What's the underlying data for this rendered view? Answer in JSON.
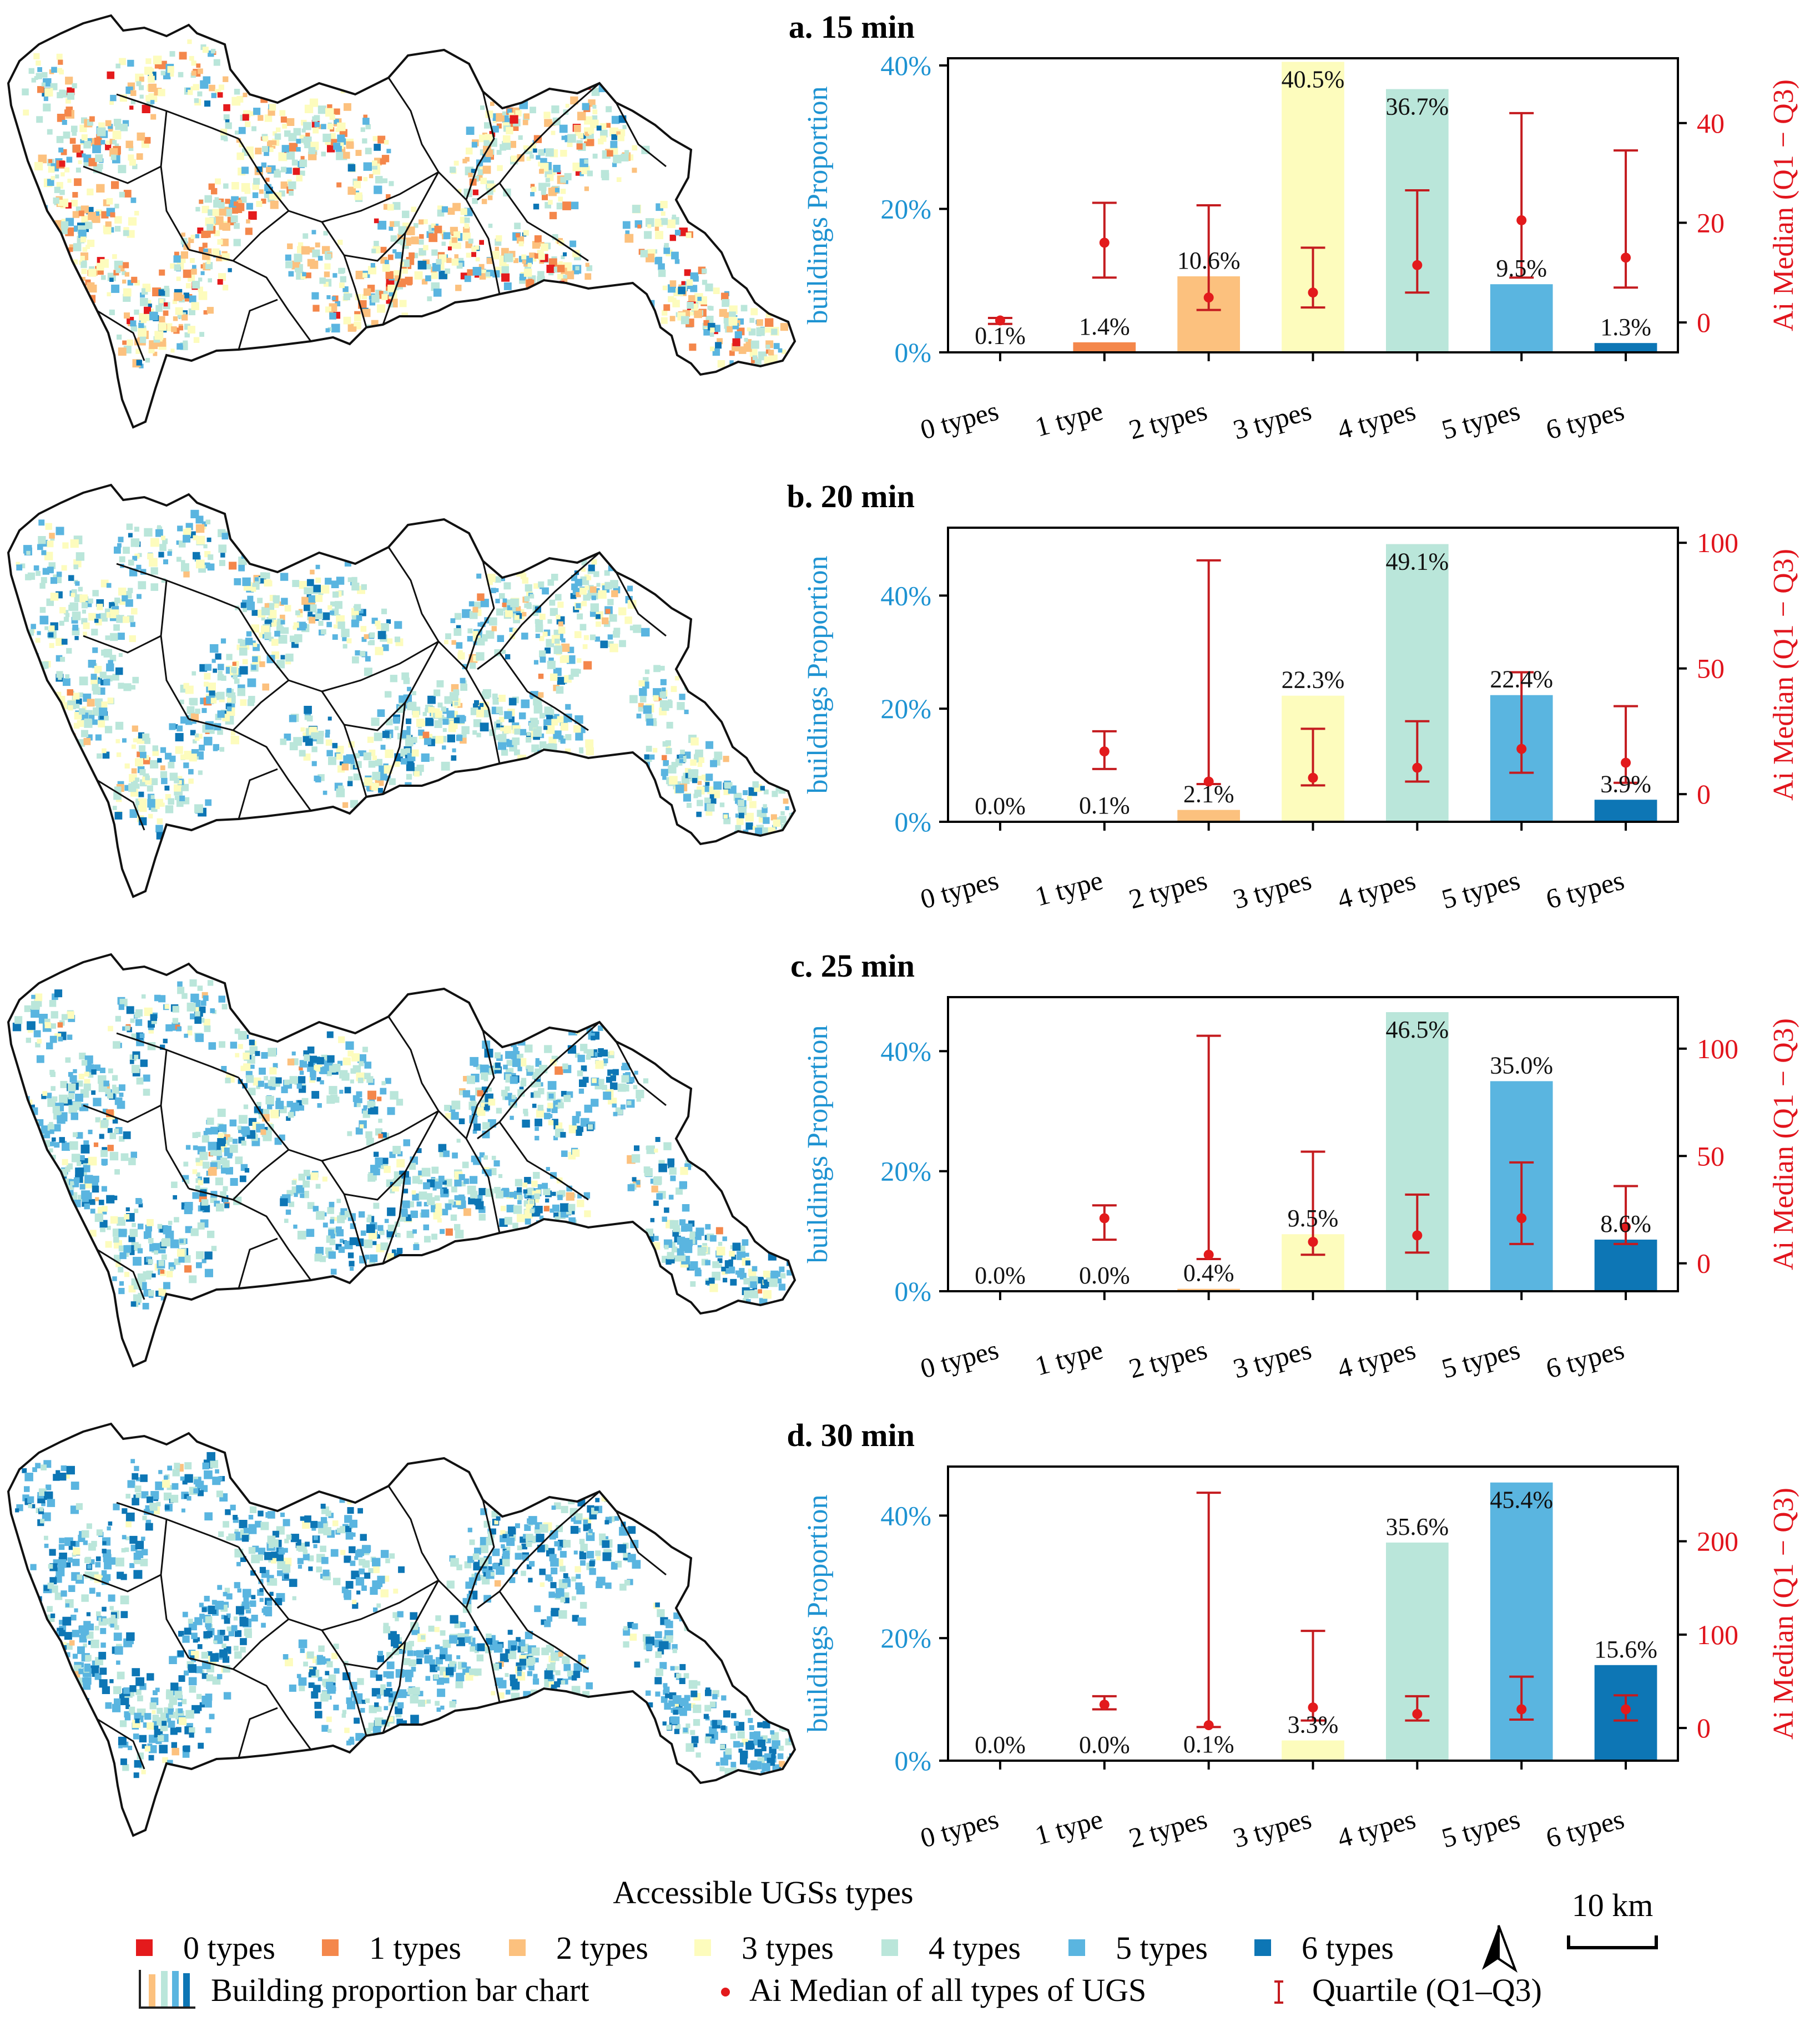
{
  "chart_data": [
    {
      "id": "a",
      "type": "bar",
      "title": "a. 15 min",
      "categories": [
        "0 types",
        "1 type",
        "2 types",
        "3 types",
        "4 types",
        "5 types",
        "6 types"
      ],
      "values": [
        0.1,
        1.4,
        10.6,
        40.5,
        36.7,
        9.5,
        1.3
      ],
      "bar_labels": [
        "0.1%",
        "1.4%",
        "10.6%",
        "40.5%",
        "36.7%",
        "9.5%",
        "1.3%"
      ],
      "ylabel": "buildings Proportion",
      "ylim": [
        0,
        41
      ],
      "yticks": [
        0,
        20,
        40
      ],
      "ytick_labels": [
        "0%",
        "20%",
        "40%"
      ],
      "y2label": "Ai Median (Q1 − Q3)",
      "y2lim": [
        -6,
        53
      ],
      "y2ticks": [
        0,
        20,
        40
      ],
      "y2tick_labels": [
        "0",
        "20",
        "40"
      ],
      "median": [
        0.4,
        16,
        5,
        6,
        11.5,
        20.5,
        13
      ],
      "q1": [
        -0.3,
        9,
        2.5,
        3,
        6,
        9,
        7
      ],
      "q3": [
        0.9,
        24,
        23.5,
        15,
        26.5,
        42,
        34.5
      ]
    },
    {
      "id": "b",
      "type": "bar",
      "title": "b. 20 min",
      "categories": [
        "0 types",
        "1 type",
        "2 types",
        "3 types",
        "4 types",
        "5 types",
        "6 types"
      ],
      "values": [
        0.0,
        0.1,
        2.1,
        22.3,
        49.1,
        22.4,
        3.9
      ],
      "bar_labels": [
        "0.0%",
        "0.1%",
        "2.1%",
        "22.3%",
        "49.1%",
        "22.4%",
        "3.9%"
      ],
      "ylabel": "buildings Proportion",
      "ylim": [
        0,
        52
      ],
      "yticks": [
        0,
        20,
        40
      ],
      "ytick_labels": [
        "0%",
        "20%",
        "40%"
      ],
      "y2label": "Ai Median (Q1 − Q3)",
      "y2lim": [
        -11,
        106
      ],
      "y2ticks": [
        0,
        50,
        100
      ],
      "y2tick_labels": [
        "0",
        "50",
        "100"
      ],
      "median": [
        null,
        17,
        5,
        6.5,
        10.5,
        18,
        12.5
      ],
      "q1": [
        null,
        10,
        4,
        3.5,
        5,
        8.5,
        4.5
      ],
      "q3": [
        null,
        25,
        93,
        26,
        29,
        48.5,
        35
      ]
    },
    {
      "id": "c",
      "type": "bar",
      "title": "c. 25 min",
      "categories": [
        "0 types",
        "1 type",
        "2 types",
        "3 types",
        "4 types",
        "5 types",
        "6 types"
      ],
      "values": [
        0.0,
        0.0,
        0.4,
        9.5,
        46.5,
        35.0,
        8.6
      ],
      "bar_labels": [
        "0.0%",
        "0.0%",
        "0.4%",
        "9.5%",
        "46.5%",
        "35.0%",
        "8.6%"
      ],
      "ylabel": "buildings Proportion",
      "ylim": [
        0,
        49
      ],
      "yticks": [
        0,
        20,
        40
      ],
      "ytick_labels": [
        "0%",
        "20%",
        "40%"
      ],
      "y2label": "Ai Median (Q1 − Q3)",
      "y2lim": [
        -13,
        124
      ],
      "y2ticks": [
        0,
        50,
        100
      ],
      "y2tick_labels": [
        "0",
        "50",
        "100"
      ],
      "median": [
        null,
        21,
        4,
        10,
        13,
        21,
        17
      ],
      "q1": [
        null,
        11,
        2,
        4,
        5,
        9,
        9
      ],
      "q3": [
        null,
        27,
        106,
        52,
        32,
        47,
        36
      ]
    },
    {
      "id": "d",
      "type": "bar",
      "title": "d. 30 min",
      "categories": [
        "0 types",
        "1 type",
        "2 types",
        "3 types",
        "4 types",
        "5 types",
        "6 types"
      ],
      "values": [
        0.0,
        0.0,
        0.1,
        3.3,
        35.6,
        45.4,
        15.6
      ],
      "bar_labels": [
        "0.0%",
        "0.0%",
        "0.1%",
        "3.3%",
        "35.6%",
        "45.4%",
        "15.6%"
      ],
      "ylabel": "buildings Proportion",
      "ylim": [
        0,
        48
      ],
      "yticks": [
        0,
        20,
        40
      ],
      "ytick_labels": [
        "0%",
        "20%",
        "40%"
      ],
      "y2label": "Ai Median (Q1 − Q3)",
      "y2lim": [
        -35,
        280
      ],
      "y2ticks": [
        0,
        100,
        200
      ],
      "y2tick_labels": [
        "0",
        "100",
        "200"
      ],
      "median": [
        null,
        25,
        3,
        22,
        15,
        20,
        20
      ],
      "q1": [
        null,
        20,
        1,
        8,
        8,
        9,
        8
      ],
      "q3": [
        null,
        34,
        252,
        104,
        34,
        55,
        35
      ]
    }
  ],
  "x_axis_title": "Accessible UGSs types",
  "colors": {
    "types": [
      "#e41a1c",
      "#f4874b",
      "#fcc17e",
      "#fdfcbd",
      "#bae6da",
      "#5ab5e0",
      "#0d76b5"
    ],
    "error": "#c41b1f",
    "median_dot": "#e31a1c",
    "left_axis": "#1e93d2",
    "right_axis": "#e1141c"
  },
  "legend": {
    "type_items": [
      "0 types",
      "1 types",
      "2 types",
      "3 types",
      "4 types",
      "5 types",
      "6 types"
    ],
    "bar_chart_label": "Building proportion bar chart",
    "median_label": "Ai Median of all types of UGS",
    "quartile_label": "Quartile (Q1–Q3)"
  },
  "scale_bar": "10 km",
  "maps": {
    "palette_weights": [
      [
        3,
        10,
        16,
        27,
        26,
        15,
        3
      ],
      [
        0,
        1,
        4,
        22,
        40,
        25,
        8
      ],
      [
        0,
        1,
        1,
        10,
        37,
        35,
        16
      ],
      [
        0,
        0,
        1,
        5,
        30,
        40,
        24
      ]
    ]
  }
}
